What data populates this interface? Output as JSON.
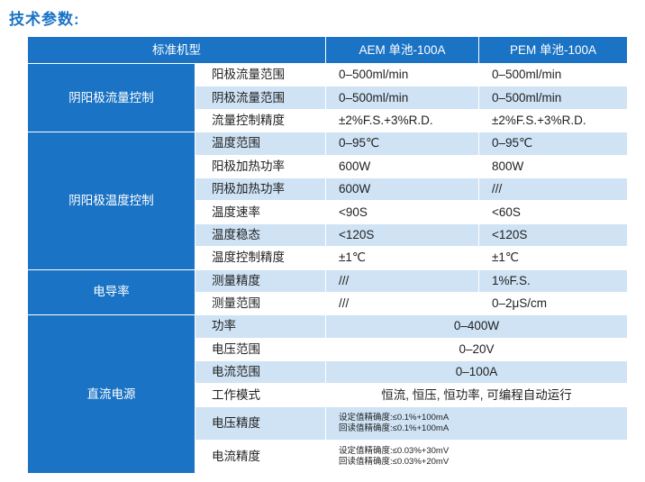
{
  "title": "技术参数:",
  "header": {
    "model": "标准机型",
    "aem": "AEM 单池-100A",
    "pem": "PEM 单池-100A"
  },
  "groups": {
    "flow": "阴阳极流量控制",
    "temp": "阴阳极温度控制",
    "cond": "电导率",
    "dc": "直流电源"
  },
  "rows": [
    {
      "param": "阳极流量范围",
      "aem": "0–500ml/min",
      "pem": "0–500ml/min"
    },
    {
      "param": "阴极流量范围",
      "aem": "0–500ml/min",
      "pem": "0–500ml/min"
    },
    {
      "param": "流量控制精度",
      "aem": "±2%F.S.+3%R.D.",
      "pem": "±2%F.S.+3%R.D."
    },
    {
      "param": "温度范围",
      "aem": "0–95℃",
      "pem": "0–95℃"
    },
    {
      "param": "阳极加热功率",
      "aem": "600W",
      "pem": "800W"
    },
    {
      "param": "阴极加热功率",
      "aem": "600W",
      "pem": "///"
    },
    {
      "param": "温度速率",
      "aem": "<90S",
      "pem": "<60S"
    },
    {
      "param": "温度稳态",
      "aem": "<120S",
      "pem": "<120S"
    },
    {
      "param": "温度控制精度",
      "aem": "±1℃",
      "pem": "±1℃"
    },
    {
      "param": "测量精度",
      "aem": "///",
      "pem": "1%F.S."
    },
    {
      "param": "测量范围",
      "aem": "///",
      "pem": "0–2μS/cm"
    },
    {
      "param": "功率",
      "value": "0–400W"
    },
    {
      "param": "电压范围",
      "value": "0–20V"
    },
    {
      "param": "电流范围",
      "value": "0–100A"
    },
    {
      "param": "工作模式",
      "value": "恒流, 恒压, 恒功率, 可编程自动运行"
    },
    {
      "param": "电压精度",
      "line1": "设定值精确度:≤0.1%+100mA",
      "line2": "回读值精确度:≤0.1%+100mA"
    },
    {
      "param": "电流精度",
      "line1": "设定值精确度:≤0.03%+30mV",
      "line2": "回读值精确度:≤0.03%+20mV"
    }
  ]
}
